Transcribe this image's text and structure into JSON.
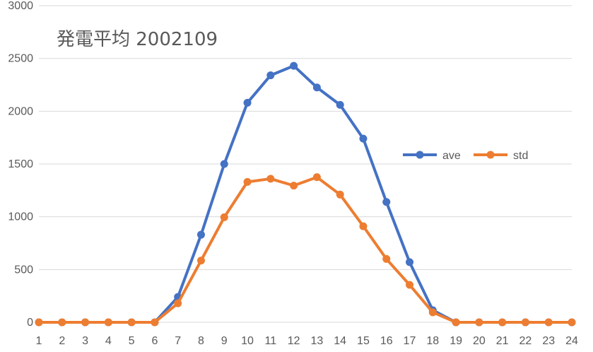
{
  "chart_data": {
    "type": "line",
    "title": "発電平均 2002109",
    "xlabel": "",
    "ylabel": "",
    "x": [
      1,
      2,
      3,
      4,
      5,
      6,
      7,
      8,
      9,
      10,
      11,
      12,
      13,
      14,
      15,
      16,
      17,
      18,
      19,
      20,
      21,
      22,
      23,
      24
    ],
    "x_tick_labels": [
      "1",
      "2",
      "3",
      "4",
      "5",
      "6",
      "7",
      "8",
      "9",
      "10",
      "11",
      "12",
      "13",
      "14",
      "15",
      "16",
      "17",
      "18",
      "19",
      "20",
      "21",
      "22",
      "23",
      "24"
    ],
    "y_tick_labels": [
      "0",
      "500",
      "1000",
      "1500",
      "2000",
      "2500",
      "3000"
    ],
    "y_ticks": [
      0,
      500,
      1000,
      1500,
      2000,
      2500,
      3000
    ],
    "ylim": [
      0,
      3000
    ],
    "grid": true,
    "legend_position": "right",
    "series": [
      {
        "name": "ave",
        "color": "#4472c4",
        "values": [
          0,
          0,
          0,
          0,
          0,
          0,
          240,
          830,
          1500,
          2080,
          2340,
          2430,
          2225,
          2060,
          1740,
          1140,
          570,
          115,
          0,
          0,
          0,
          0,
          0,
          0
        ]
      },
      {
        "name": "std",
        "color": "#ed7d31",
        "values": [
          0,
          0,
          0,
          0,
          0,
          0,
          180,
          585,
          995,
          1330,
          1360,
          1295,
          1375,
          1210,
          910,
          600,
          355,
          95,
          0,
          0,
          0,
          0,
          0,
          0
        ]
      }
    ]
  }
}
